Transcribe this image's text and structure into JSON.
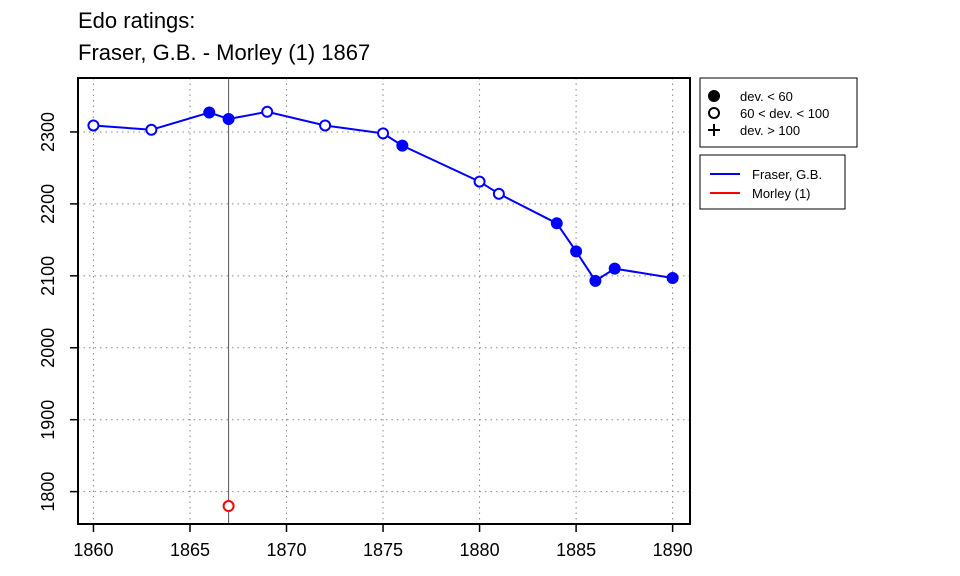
{
  "title_lines": [
    "Edo ratings:",
    "Fraser, G.B. - Morley (1) 1867"
  ],
  "chart_data": {
    "type": "line",
    "xlim": [
      1859.2,
      1890.9
    ],
    "ylim": [
      1755,
      2375
    ],
    "x_ticks": [
      1860,
      1865,
      1870,
      1875,
      1880,
      1885,
      1890
    ],
    "y_ticks": [
      1800,
      1900,
      2000,
      2100,
      2200,
      2300
    ],
    "grid": true,
    "marker_line_x": 1867,
    "series": [
      {
        "name": "Fraser, G.B.",
        "color": "#0000ff",
        "line": true,
        "points": [
          {
            "x": 1860,
            "y": 2309,
            "marker": "open"
          },
          {
            "x": 1863,
            "y": 2303,
            "marker": "open"
          },
          {
            "x": 1866,
            "y": 2327,
            "marker": "filled"
          },
          {
            "x": 1867,
            "y": 2318,
            "marker": "filled"
          },
          {
            "x": 1869,
            "y": 2328,
            "marker": "open"
          },
          {
            "x": 1872,
            "y": 2309,
            "marker": "open"
          },
          {
            "x": 1875,
            "y": 2298,
            "marker": "open"
          },
          {
            "x": 1876,
            "y": 2281,
            "marker": "filled"
          },
          {
            "x": 1880,
            "y": 2231,
            "marker": "open"
          },
          {
            "x": 1881,
            "y": 2214,
            "marker": "open"
          },
          {
            "x": 1884,
            "y": 2173,
            "marker": "filled"
          },
          {
            "x": 1885,
            "y": 2134,
            "marker": "filled"
          },
          {
            "x": 1886,
            "y": 2093,
            "marker": "filled"
          },
          {
            "x": 1887,
            "y": 2110,
            "marker": "filled"
          },
          {
            "x": 1890,
            "y": 2097,
            "marker": "filled"
          }
        ]
      },
      {
        "name": "Morley (1)",
        "color": "#ff0000",
        "line": false,
        "points": [
          {
            "x": 1867,
            "y": 1780,
            "marker": "open"
          }
        ]
      }
    ],
    "marker_legend": [
      {
        "symbol": "filled",
        "label": "dev. < 60"
      },
      {
        "symbol": "open",
        "label": "60 < dev. < 100"
      },
      {
        "symbol": "plus",
        "label": "dev. > 100"
      }
    ],
    "series_legend": [
      {
        "label": "Fraser, G.B.",
        "color": "#0000ff"
      },
      {
        "label": "Morley (1)",
        "color": "#ff0000"
      }
    ],
    "legend_position": "right"
  }
}
